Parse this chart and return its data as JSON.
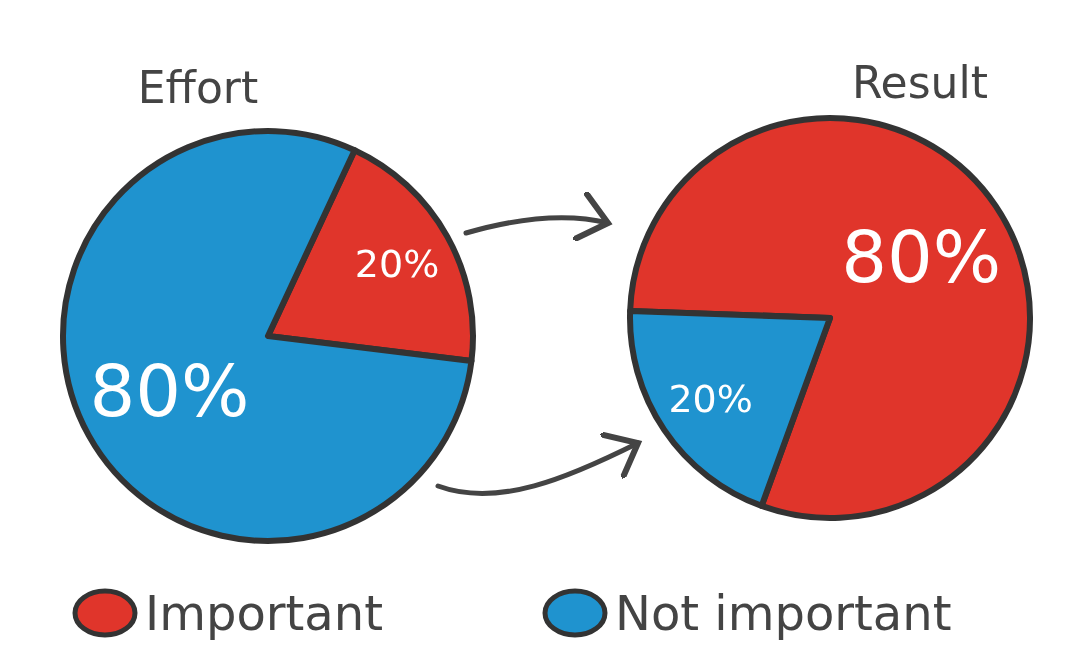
{
  "chart_data": [
    {
      "type": "pie",
      "title": "Effort",
      "categories": [
        "Important",
        "Not important"
      ],
      "values": [
        20,
        80
      ],
      "colors": [
        "#e0352b",
        "#1f93cf"
      ],
      "value_labels": [
        "20%",
        "80%"
      ],
      "legend": "bottom"
    },
    {
      "type": "pie",
      "title": "Result",
      "categories": [
        null,
        null
      ],
      "values": [
        80,
        20
      ],
      "colors": [
        "#e0352b",
        "#1f93cf"
      ],
      "value_labels": [
        "80%",
        "20%"
      ]
    }
  ]
}
